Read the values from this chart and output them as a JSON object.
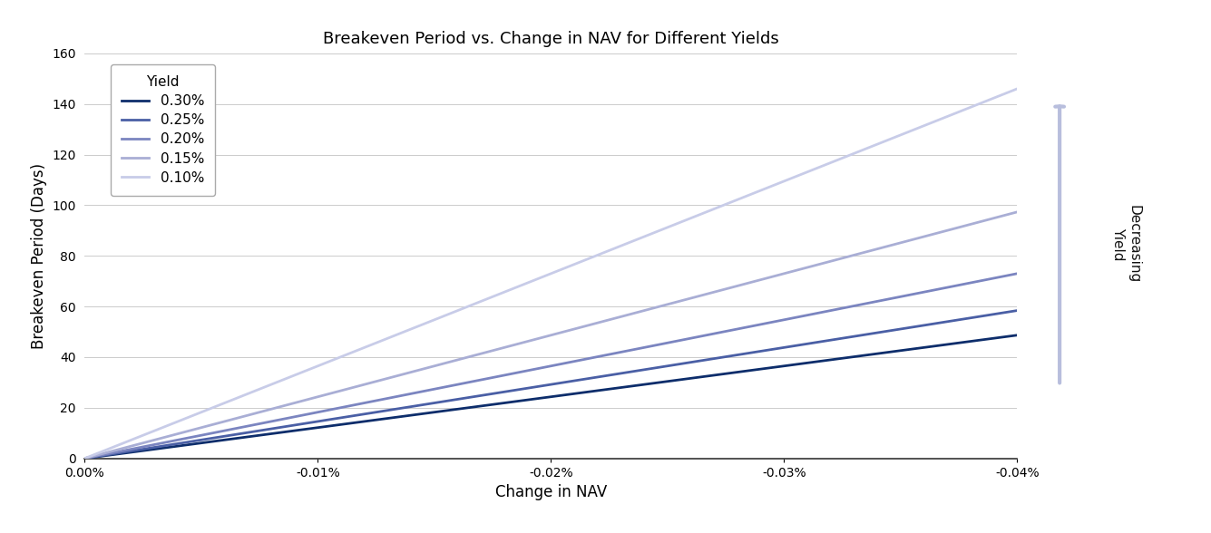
{
  "title": "Breakeven Period vs. Change in NAV for Different Yields",
  "xlabel": "Change in NAV",
  "ylabel": "Breakeven Period (Days)",
  "yields": [
    0.003,
    0.0025,
    0.002,
    0.0015,
    0.001
  ],
  "yield_labels": [
    "0.30%",
    "0.25%",
    "0.20%",
    "0.15%",
    "0.10%"
  ],
  "line_colors": [
    "#0d2d6b",
    "#4a5fa5",
    "#7b85c0",
    "#a9aed5",
    "#c8cce8"
  ],
  "nav_range": [
    -0.0004,
    0.0
  ],
  "ylim": [
    0,
    160
  ],
  "yticks": [
    0,
    20,
    40,
    60,
    80,
    100,
    120,
    140,
    160
  ],
  "xticks": [
    0.0,
    -0.0001,
    -0.0002,
    -0.0003,
    -0.0004
  ],
  "xtick_labels": [
    "0.00%",
    "-0.01%",
    "-0.02%",
    "-0.03%",
    "-0.04%"
  ],
  "legend_title": "Yield",
  "arrow_label": "Decreasing\nYield",
  "arrow_color": "#b8bedd",
  "background_color": "#ffffff",
  "grid_color": "#cccccc",
  "legend_fontsize": 11,
  "title_fontsize": 13,
  "axis_label_fontsize": 12,
  "tick_fontsize": 10,
  "line_width": 2.0,
  "days_per_year": 365
}
